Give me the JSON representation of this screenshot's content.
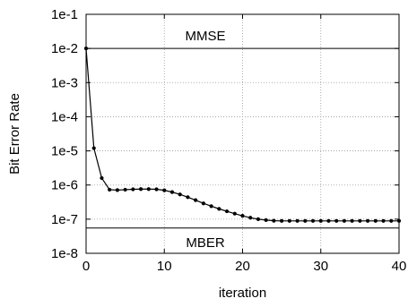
{
  "chart_data": {
    "type": "line",
    "title": "",
    "xlabel": "iteration",
    "ylabel": "Bit Error Rate",
    "x_scale": "linear",
    "y_scale": "log",
    "xlim": [
      0,
      40
    ],
    "ylim": [
      1e-08,
      0.1
    ],
    "grid": true,
    "x_ticks": [
      0,
      10,
      20,
      30,
      40
    ],
    "x_tick_labels": [
      "0",
      "10",
      "20",
      "30",
      "40"
    ],
    "y_ticks": [
      1e-08,
      1e-07,
      1e-06,
      1e-05,
      0.0001,
      0.001,
      0.01,
      0.1
    ],
    "y_tick_labels": [
      "1e-8",
      "1e-7",
      "1e-6",
      "1e-5",
      "1e-4",
      "1e-3",
      "1e-2",
      "1e-1"
    ],
    "series": [
      {
        "x": [
          0,
          1,
          2,
          3,
          4,
          5,
          6,
          7,
          8,
          9,
          10,
          11,
          12,
          13,
          14,
          15,
          16,
          17,
          18,
          19,
          20,
          21,
          22,
          23,
          24,
          25,
          26,
          27,
          28,
          29,
          30,
          31,
          32,
          33,
          34,
          35,
          36,
          37,
          38,
          39,
          40
        ],
        "values": [
          0.01,
          1.2e-05,
          1.6e-06,
          7.3e-07,
          7.1e-07,
          7.3e-07,
          7.5e-07,
          7.6e-07,
          7.6e-07,
          7.5e-07,
          7e-07,
          6.2e-07,
          5.3e-07,
          4.4e-07,
          3.6e-07,
          2.9e-07,
          2.4e-07,
          2e-07,
          1.7e-07,
          1.45e-07,
          1.25e-07,
          1.1e-07,
          1e-07,
          9.4e-08,
          9e-08,
          8.9e-08,
          8.9e-08,
          8.9e-08,
          8.9e-08,
          8.9e-08,
          8.9e-08,
          8.9e-08,
          8.9e-08,
          8.9e-08,
          8.9e-08,
          8.9e-08,
          8.9e-08,
          8.9e-08,
          8.9e-08,
          8.9e-08,
          8.9e-08
        ],
        "color": "#000000",
        "marker": "circle"
      }
    ],
    "reference_lines": [
      {
        "label": "MMSE",
        "y": 0.01
      },
      {
        "label": "MBER",
        "y": 5.5e-08
      }
    ]
  }
}
